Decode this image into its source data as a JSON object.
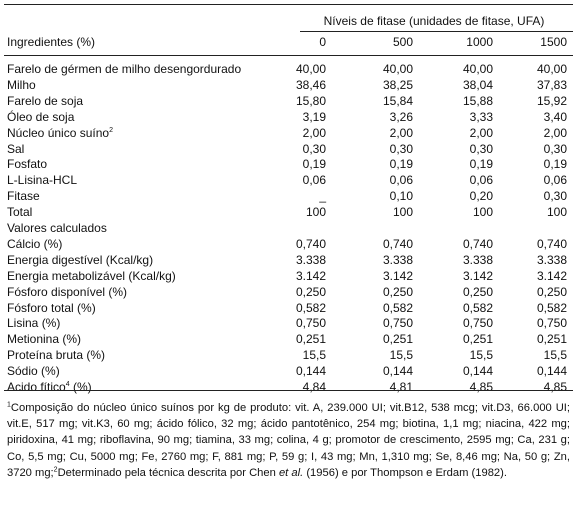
{
  "table": {
    "group_header": "Níveis de fitase (unidades de fitase, UFA)",
    "first_col_header": "Ingredientes  (%)",
    "columns": [
      "0",
      "500",
      "1000",
      "1500"
    ],
    "rows": [
      {
        "label": "Farelo de gérmen de milho desengordurado",
        "values": [
          "40,00",
          "40,00",
          "40,00",
          "40,00"
        ]
      },
      {
        "label": "Milho",
        "values": [
          "38,46",
          "38,25",
          "38,04",
          "37,83"
        ]
      },
      {
        "label": "Farelo de soja",
        "values": [
          "15,80",
          "15,84",
          "15,88",
          "15,92"
        ]
      },
      {
        "label": "Óleo de soja",
        "values": [
          "3,19",
          "3,26",
          "3,33",
          "3,40"
        ]
      },
      {
        "label": "Núcleo único suíno",
        "sup": "2",
        "values": [
          "2,00",
          "2,00",
          "2,00",
          "2,00"
        ]
      },
      {
        "label": "Sal",
        "values": [
          "0,30",
          "0,30",
          "0,30",
          "0,30"
        ]
      },
      {
        "label": "Fosfato",
        "values": [
          "0,19",
          "0,19",
          "0,19",
          "0,19"
        ]
      },
      {
        "label": "L-Lisina-HCL",
        "values": [
          "0,06",
          "0,06",
          "0,06",
          "0,06"
        ]
      },
      {
        "label": "Fitase",
        "values": [
          "_",
          "0,10",
          "0,20",
          "0,30"
        ]
      },
      {
        "label": "Total",
        "values": [
          "100",
          "100",
          "100",
          "100"
        ]
      },
      {
        "label": "Valores  calculados",
        "values": [
          "",
          "",
          "",
          ""
        ]
      },
      {
        "label": "Cálcio (%)",
        "values": [
          "0,740",
          "0,740",
          "0,740",
          "0,740"
        ]
      },
      {
        "label": "Energia digestível (Kcal/kg)",
        "values": [
          "3.338",
          "3.338",
          "3.338",
          "3.338"
        ]
      },
      {
        "label": "Energia metabolizável (Kcal/kg)",
        "values": [
          "3.142",
          "3.142",
          "3.142",
          "3.142"
        ]
      },
      {
        "label": "Fósforo disponível (%)",
        "values": [
          "0,250",
          "0,250",
          "0,250",
          "0,250"
        ]
      },
      {
        "label": "Fósforo total (%)",
        "values": [
          "0,582",
          "0,582",
          "0,582",
          "0,582"
        ]
      },
      {
        "label": "Lisina (%)",
        "values": [
          "0,750",
          "0,750",
          "0,750",
          "0,750"
        ]
      },
      {
        "label": "Metionina (%)",
        "values": [
          "0,251",
          "0,251",
          "0,251",
          "0,251"
        ]
      },
      {
        "label": "Proteína bruta (%)",
        "values": [
          "15,5",
          "15,5",
          "15,5",
          "15,5"
        ]
      },
      {
        "label": "Sódio (%)",
        "values": [
          "0,144",
          "0,144",
          "0,144",
          "0,144"
        ]
      },
      {
        "label": "Acido fítico",
        "sup": "4",
        "label_suffix": " (%)",
        "values": [
          "4,84",
          "4,81",
          "4,85",
          "4,85"
        ]
      }
    ]
  },
  "footnote": {
    "sup1": "1",
    "part1": "Composição do núcleo único suínos por kg de produto: vit. A, 239.000 UI; vit.B12, 538 mcg; vit.D3, 66.000 UI; vit.E, 517 mg; vit.K3, 60 mg; ácido fólico, 32 mg; ácido pantotênico, 254 mg; biotina, 1,1 mg; niacina, 422 mg; piridoxina, 41 mg; riboflavina, 90 mg; tiamina, 33 mg; colina, 4 g; promotor de crescimento, 2595 mg; Ca, 231 g; Co, 5,5 mg; Cu, 5000 mg; Fe, 2760 mg; F, 881 mg; P, 59 g; I, 43 mg; Mn, 1,310 mg; Se, 8,46 mg; Na, 50 g; Zn, 3720 mg;",
    "sup2": "2",
    "part2": "Determinado pela técnica descrita por Chen ",
    "etal": "et al.",
    "part3": " (1956) e por Thompson e Erdam (1982)."
  }
}
